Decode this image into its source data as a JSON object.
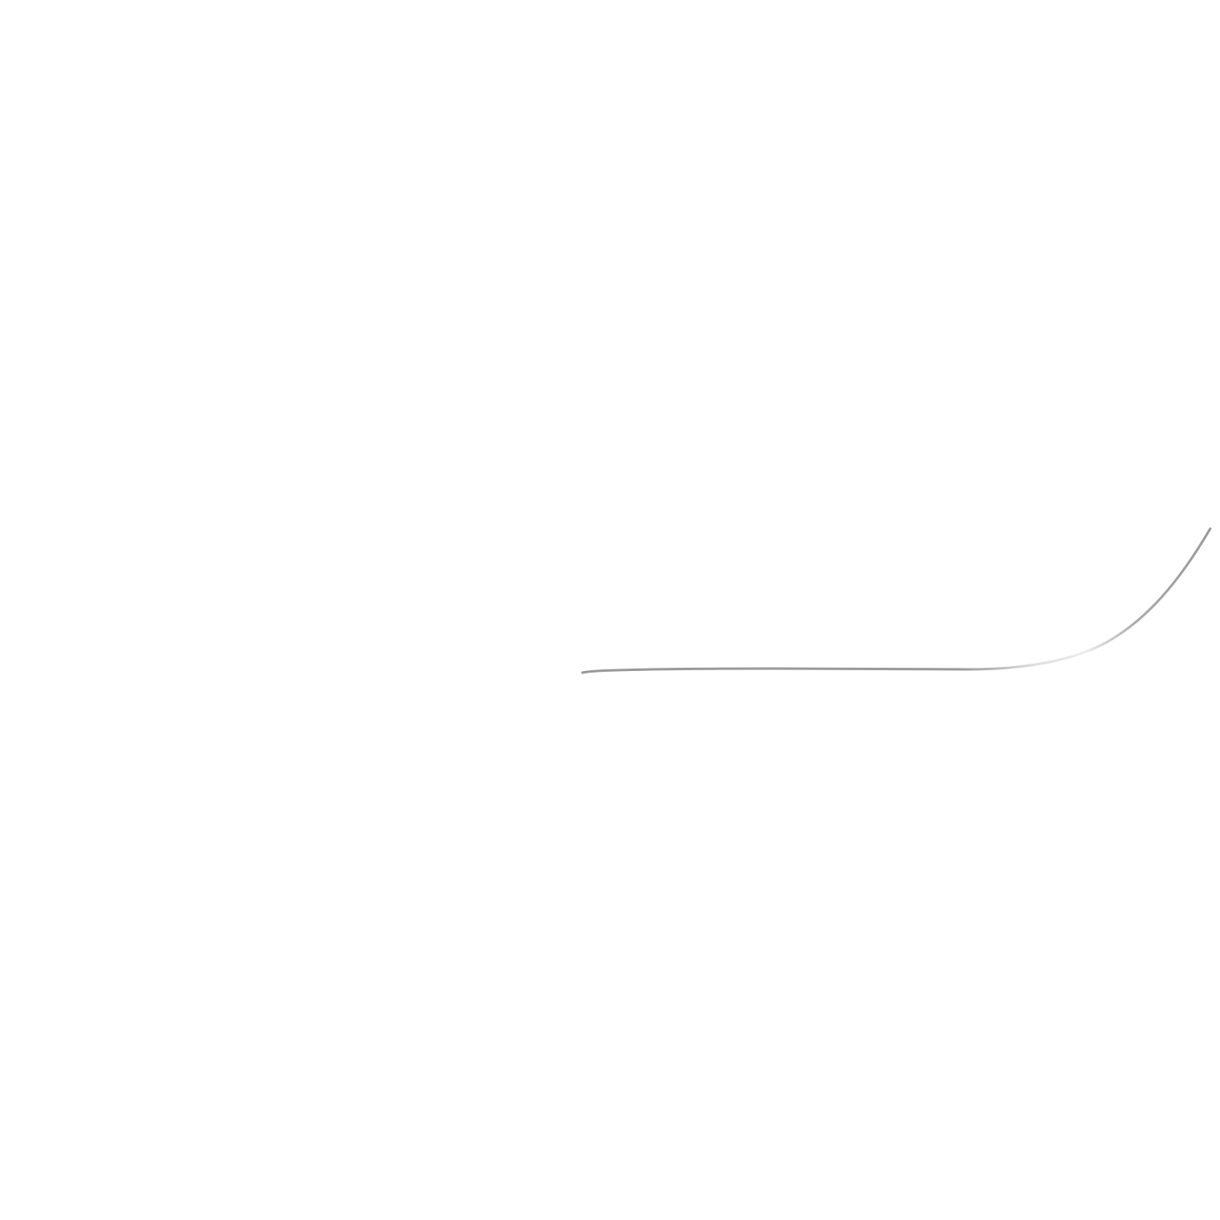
{
  "canvas": {
    "background": "#ffffff",
    "stroke": {
      "color": "#999999",
      "fade_color": "#eeeeee"
    }
  }
}
